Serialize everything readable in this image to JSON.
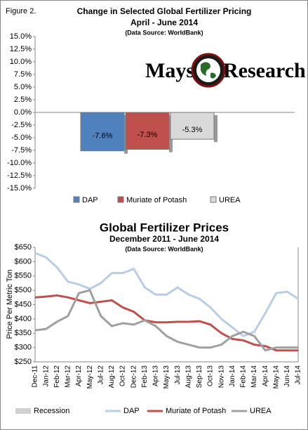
{
  "figure_label": "Figure 2.",
  "logo": {
    "left": "Mays",
    "right": "Research"
  },
  "chart_data": [
    {
      "type": "bar",
      "title": "Change in Selected  Global Fertilizer Pricing",
      "subtitle": "April - June 2014",
      "source": "(Data Source: WorldBank)",
      "series": [
        {
          "name": "DAP",
          "color": "#4f81bd",
          "values": [
            -7.6
          ],
          "value_labels": [
            "-7.6%"
          ]
        },
        {
          "name": "Muriate of Potash",
          "color": "#c0504d",
          "values": [
            -7.3
          ],
          "value_labels": [
            "-7.3%"
          ]
        },
        {
          "name": "UREA",
          "color": "#d9d9d9",
          "values": [
            -5.3
          ],
          "value_labels": [
            "-5.3%"
          ]
        }
      ],
      "ylim": [
        -15,
        15
      ],
      "yticks": [
        {
          "value": 15,
          "label": "15.0%"
        },
        {
          "value": 12.5,
          "label": "12.5%"
        },
        {
          "value": 10,
          "label": "10.0%"
        },
        {
          "value": 7.5,
          "label": "7.5%"
        },
        {
          "value": 5,
          "label": "5.0%"
        },
        {
          "value": 2.5,
          "label": "2.5%"
        },
        {
          "value": 0,
          "label": "0.0%"
        },
        {
          "value": -2.5,
          "label": "-2.5%"
        },
        {
          "value": -5,
          "label": "-5.0%"
        },
        {
          "value": -7.5,
          "label": "-7.5%"
        },
        {
          "value": -10,
          "label": "-10.0%"
        },
        {
          "value": -12.5,
          "label": "-12.5%"
        },
        {
          "value": -15,
          "label": "-15.0%"
        }
      ]
    },
    {
      "type": "line",
      "title": "Global Fertilizer Prices",
      "subtitle": "December 2011 - June 2014",
      "source": "(Data Source: WorldBank)",
      "y_label": "Price Per Metric Ton",
      "categories": [
        "Dec-11",
        "Jan-12",
        "Feb-12",
        "Mar-12",
        "Apr-12",
        "May-12",
        "Jul-12",
        "Aug-12",
        "Oct-12",
        "Dec-12",
        "Feb-13",
        "Apr-13",
        "May-13",
        "Jul-13",
        "Aug-13",
        "Sep-13",
        "Oct-13",
        "Nov-13",
        "Jan-14",
        "Feb-14",
        "Mar-14",
        "Apr-14",
        "May-14",
        "Jun-14",
        "Jul-14"
      ],
      "series": [
        {
          "name": "Recession",
          "color": "#d0d0d0",
          "values": [
            null,
            null,
            null,
            null,
            null,
            null,
            null,
            null,
            null,
            null,
            null,
            null,
            null,
            null,
            null,
            null,
            null,
            null,
            null,
            null,
            null,
            null,
            null,
            null,
            null
          ]
        },
        {
          "name": "DAP",
          "color": "#b9cde5",
          "values": [
            630,
            615,
            580,
            530,
            520,
            505,
            525,
            560,
            560,
            575,
            510,
            485,
            485,
            510,
            485,
            470,
            440,
            400,
            370,
            340,
            355,
            420,
            490,
            495,
            470
          ]
        },
        {
          "name": "Muriate of Potash",
          "color": "#c0504d",
          "values": [
            475,
            478,
            482,
            475,
            465,
            455,
            460,
            465,
            440,
            425,
            395,
            388,
            388,
            390,
            390,
            392,
            380,
            350,
            330,
            325,
            310,
            305,
            290,
            290,
            290
          ]
        },
        {
          "name": "UREA",
          "color": "#a0a0a0",
          "values": [
            360,
            365,
            390,
            410,
            490,
            500,
            410,
            375,
            385,
            380,
            395,
            375,
            340,
            320,
            310,
            300,
            300,
            310,
            340,
            355,
            340,
            290,
            300,
            300,
            300
          ]
        }
      ],
      "ylim": [
        250,
        650
      ],
      "yticks": [
        {
          "value": 650,
          "label": "$650"
        },
        {
          "value": 600,
          "label": "$600"
        },
        {
          "value": 550,
          "label": "$550"
        },
        {
          "value": 500,
          "label": "$500"
        },
        {
          "value": 450,
          "label": "$450"
        },
        {
          "value": 400,
          "label": "$400"
        },
        {
          "value": 350,
          "label": "$350"
        },
        {
          "value": 300,
          "label": "$300"
        },
        {
          "value": 250,
          "label": "$250"
        }
      ]
    }
  ]
}
